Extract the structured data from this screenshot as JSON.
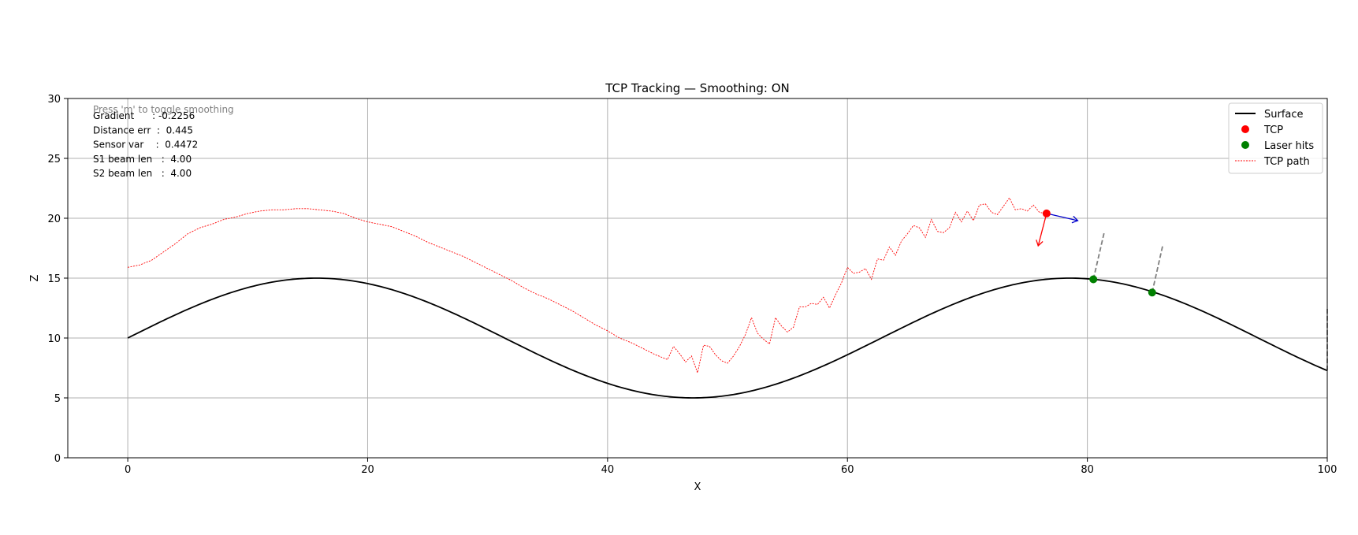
{
  "chart_data": {
    "type": "line",
    "title": "TCP Tracking — Smoothing: ON",
    "xlabel": "X",
    "ylabel": "Z",
    "xlim": [
      -5,
      100
    ],
    "ylim": [
      0,
      30
    ],
    "xticks": [
      0,
      20,
      40,
      60,
      80,
      100
    ],
    "yticks": [
      0,
      5,
      10,
      15,
      20,
      25,
      30
    ],
    "grid": true,
    "legend_position": "top-right",
    "colors": {
      "surface": "#000000",
      "tcp": "#ff0000",
      "laser": "#008000",
      "path": "#ff0000",
      "normal": "#ff0000",
      "tangent": "#0000cc",
      "beam": "#808080",
      "grid": "#b0b0b0",
      "hint": "#808080"
    },
    "surface": {
      "label": "Surface",
      "function": "10 + 5*sin(0.1*x)",
      "x_range": [
        0,
        100
      ]
    },
    "series": [
      {
        "name": "TCP path",
        "style": "dotted",
        "x": [
          0,
          1,
          2,
          3,
          4,
          5,
          6,
          7,
          8,
          9,
          10,
          11,
          12,
          13,
          14,
          15,
          16,
          17,
          18,
          19,
          20,
          21,
          22,
          23,
          24,
          25,
          26,
          27,
          28,
          29,
          30,
          31,
          32,
          33,
          34,
          35,
          36,
          37,
          38,
          39,
          40,
          41,
          42,
          43,
          44,
          45,
          45.5,
          46,
          46.5,
          47,
          47.5,
          48,
          48.5,
          49,
          49.5,
          50,
          50.5,
          51,
          51.5,
          52,
          52.5,
          53,
          53.5,
          54,
          54.5,
          55,
          55.5,
          56,
          56.5,
          57,
          57.5,
          58,
          58.5,
          59,
          59.5,
          60,
          60.5,
          61,
          61.5,
          62,
          62.5,
          63,
          63.5,
          64,
          64.5,
          65,
          65.5,
          66,
          66.5,
          67,
          67.5,
          68,
          68.5,
          69,
          69.5,
          70,
          70.5,
          71,
          71.5,
          72,
          72.5,
          73,
          73.5,
          74,
          74.5,
          75,
          75.5,
          76,
          76.5
        ],
        "y": [
          15.9,
          16.1,
          16.5,
          17.2,
          17.9,
          18.7,
          19.2,
          19.5,
          19.9,
          20.1,
          20.4,
          20.6,
          20.7,
          20.7,
          20.8,
          20.8,
          20.7,
          20.6,
          20.4,
          20.0,
          19.7,
          19.5,
          19.3,
          18.9,
          18.5,
          18.0,
          17.6,
          17.2,
          16.8,
          16.3,
          15.8,
          15.3,
          14.8,
          14.2,
          13.7,
          13.3,
          12.8,
          12.3,
          11.7,
          11.1,
          10.6,
          10.0,
          9.6,
          9.1,
          8.6,
          8.2,
          9.3,
          8.7,
          8.0,
          8.5,
          7.1,
          9.4,
          9.3,
          8.6,
          8.1,
          7.9,
          8.5,
          9.3,
          10.3,
          11.7,
          10.4,
          9.9,
          9.5,
          11.7,
          11.0,
          10.5,
          10.9,
          12.6,
          12.6,
          12.9,
          12.8,
          13.4,
          12.5,
          13.6,
          14.6,
          15.9,
          15.4,
          15.5,
          15.8,
          14.9,
          16.6,
          16.5,
          17.6,
          16.9,
          18.1,
          18.7,
          19.4,
          19.2,
          18.4,
          19.9,
          18.9,
          18.8,
          19.2,
          20.5,
          19.7,
          20.6,
          19.8,
          21.1,
          21.2,
          20.5,
          20.3,
          21.0,
          21.7,
          20.7,
          20.8,
          20.6,
          21.1,
          20.5,
          20.4
        ]
      }
    ],
    "tcp": {
      "label": "TCP",
      "x": 76.6,
      "y": 20.4
    },
    "tcp_normal": {
      "dx": -0.7,
      "dy": -2.7
    },
    "tcp_tangent": {
      "dx": 2.6,
      "dy": -0.6
    },
    "laser_hits": {
      "label": "Laser hits",
      "points": [
        {
          "x": 80.5,
          "y": 14.9
        },
        {
          "x": 85.4,
          "y": 13.8
        }
      ]
    },
    "beams": [
      {
        "x1": 80.5,
        "y1": 14.9,
        "x2": 81.4,
        "y2": 18.8
      },
      {
        "x1": 85.4,
        "y1": 13.8,
        "x2": 86.3,
        "y2": 17.8
      },
      {
        "x1": 100,
        "y1": 7.3,
        "x2": 100,
        "y2": 12.5
      }
    ],
    "info_lines": [
      "Gradient      : -0.2256",
      "Distance err  :  0.445",
      "Sensor var    :  0.4472",
      "S1 beam len   :  4.00",
      "S2 beam len   :  4.00"
    ],
    "hint": "Press 'm' to toggle smoothing",
    "legend": [
      "Surface",
      "TCP",
      "Laser hits",
      "TCP path"
    ]
  }
}
